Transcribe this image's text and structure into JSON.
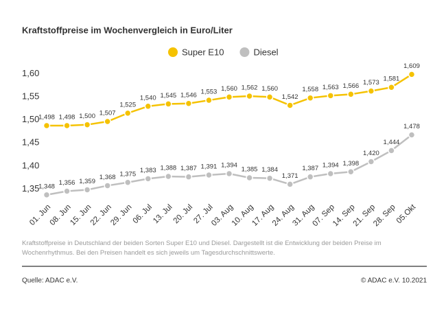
{
  "chart_data": {
    "type": "line",
    "title": "Kraftstoffpreise im Wochenvergleich in Euro/Liter",
    "categories": [
      "01. Jun",
      "08. Jun",
      "15. Jun",
      "22. Jun",
      "29. Jun",
      "06. Jul",
      "13. Jul",
      "20. Jul",
      "27. Jul",
      "03. Aug",
      "10. Aug",
      "17. Aug",
      "24. Aug",
      "31. Aug",
      "07. Sep",
      "14. Sep",
      "21. Sep",
      "28. Sep",
      "05.Okt"
    ],
    "series": [
      {
        "name": "Super E10",
        "color": "#f5c200",
        "values": [
          1.498,
          1.498,
          1.5,
          1.507,
          1.525,
          1.54,
          1.545,
          1.546,
          1.553,
          1.56,
          1.562,
          1.56,
          1.542,
          1.558,
          1.563,
          1.566,
          1.573,
          1.581,
          1.609
        ],
        "value_labels": [
          "1,498",
          "1,498",
          "1,500",
          "1,507",
          "1,525",
          "1,540",
          "1,545",
          "1,546",
          "1,553",
          "1,560",
          "1,562",
          "1,560",
          "1,542",
          "1,558",
          "1,563",
          "1,566",
          "1,573",
          "1,581",
          "1,609"
        ]
      },
      {
        "name": "Diesel",
        "color": "#bfbfbf",
        "values": [
          1.348,
          1.356,
          1.359,
          1.368,
          1.375,
          1.383,
          1.388,
          1.387,
          1.391,
          1.394,
          1.385,
          1.384,
          1.371,
          1.387,
          1.394,
          1.398,
          1.42,
          1.444,
          1.478
        ],
        "value_labels": [
          "1,348",
          "1,356",
          "1,359",
          "1,368",
          "1,375",
          "1,383",
          "1,388",
          "1,387",
          "1,391",
          "1,394",
          "1,385",
          "1,384",
          "1,371",
          "1,387",
          "1,394",
          "1,398",
          "1,420",
          "1,444",
          "1,478"
        ]
      }
    ],
    "ylim": [
      1.33,
      1.62
    ],
    "yticks": [
      {
        "value": 1.35,
        "label": "1,35"
      },
      {
        "value": 1.4,
        "label": "1,40"
      },
      {
        "value": 1.45,
        "label": "1,45"
      },
      {
        "value": 1.5,
        "label": "1,50"
      },
      {
        "value": 1.55,
        "label": "1,55"
      },
      {
        "value": 1.6,
        "label": "1,60"
      }
    ],
    "grid": false,
    "legend": "top",
    "note": "Kraftstoffpreise in Deutschland der beiden Sorten Super E10 und Diesel. Dargestellt ist die Entwicklung der beiden Preise im Wochenrhythmus. Bei den Preisen handelt es sich jeweils um Tagesdurchschnittswerte.",
    "source": "Quelle: ADAC e.V.",
    "copyright": "© ADAC e.V. 10.2021"
  }
}
